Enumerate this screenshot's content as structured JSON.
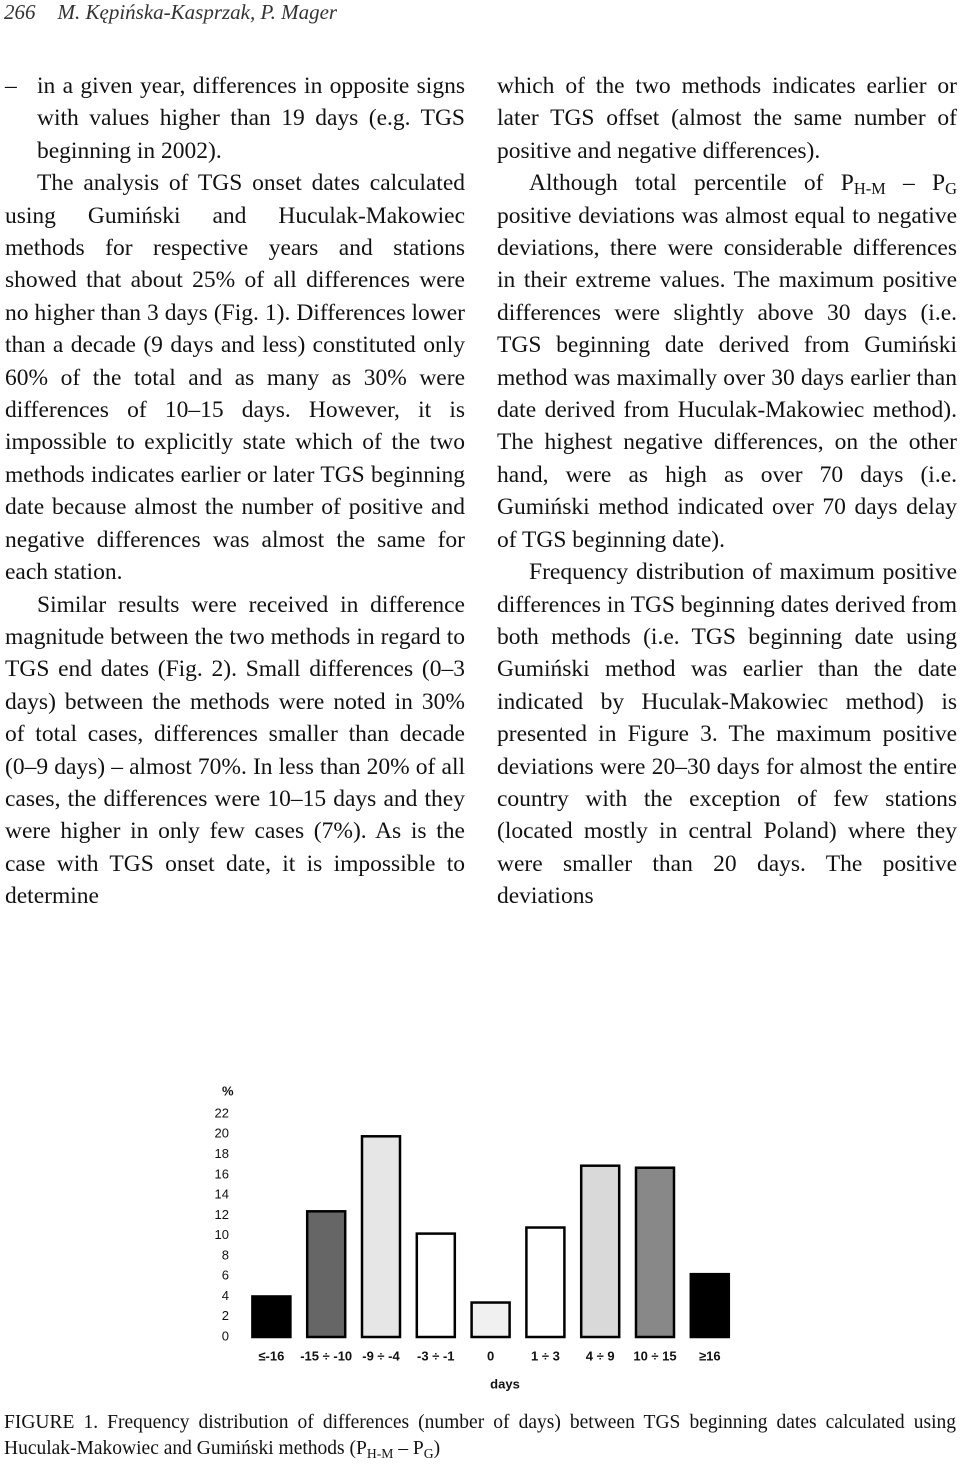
{
  "header": {
    "page": "266",
    "authors": "M. Kępińska-Kasprzak, P. Mager"
  },
  "left_column": {
    "item_marker": "–",
    "item": [
      [
        "in a given year, differences in opposite signs with values higher than 19 days (e.g. TGS beginning in 2002)."
      ]
    ],
    "paragraphs": [
      [
        "The analysis of TGS onset dates calculated using Gumiński and Huculak-Makowiec methods for respective years and stations showed that about 25% of all differences were no higher than 3 days (Fig. 1). Differences lower than a decade (9 days and less) constituted only 60% of the total and as many as 30% were differences of 10–15 days. However, it is impossible to explicitly state which of the two methods indicates earlier or later TGS beginning date because almost the number of positive and negative differences was almost the same for each station."
      ],
      [
        "Similar results were received in difference magnitude between the two methods in regard to TGS end dates (Fig. 2). Small differences (0–3 days) between the methods were noted in 30% of total cases, differences smaller than decade (0–9 days) – almost 70%. In less than 20% of all cases, the differences were 10–15 days and they were higher in only few cases (7%). As is the case with TGS onset date, it is impossible to determine"
      ]
    ]
  },
  "right_column": {
    "paragraphs": [
      [
        "which of the two methods indicates earlier or later TGS offset (almost the same number of positive and negative differences)."
      ],
      [
        "Although total percentile of P",
        "H-M",
        " – P",
        "G",
        " positive deviations was almost equal to negative deviations, there were considerable differences in their extreme values. The maximum positive differences were slightly above 30 days (i.e. TGS beginning date derived from Gumiński method was maximally over 30 days earlier than date derived from Huculak-Makowiec method). The highest negative differences, on the other hand, were as high as over 70 days (i.e. Gumiński method indicated over 70 days delay of TGS beginning date)."
      ],
      [
        "Frequency distribution of maximum positive differences in TGS beginning dates derived from both methods (i.e. TGS beginning date using Gumiński method was earlier than the date indicated by Huculak-Makowiec method) is presented in Figure 3. The maximum positive deviations were 20–30 days for almost the entire country with the exception of few stations (located mostly in central Poland) where they were smaller than 20 days. The positive deviations"
      ]
    ]
  },
  "chart_data": {
    "type": "bar",
    "y_label": "%",
    "x_label": "days",
    "categories": [
      "≤-16",
      "-15 ÷ -10",
      "-9 ÷ -4",
      "-3 ÷ -1",
      "0",
      "1 ÷ 3",
      "4 ÷ 9",
      "10 ÷ 15",
      "≥16"
    ],
    "values": [
      4.0,
      12.4,
      19.8,
      10.2,
      3.4,
      10.8,
      16.9,
      16.7,
      6.2
    ],
    "colors": [
      "#000000",
      "#666666",
      "#e6e6e6",
      "#ffffff",
      "#f0f0f0",
      "#ffffff",
      "#d9d9d9",
      "#888888",
      "#000000"
    ],
    "ylim": [
      0,
      22
    ],
    "yticks": [
      0,
      2,
      4,
      6,
      8,
      10,
      12,
      14,
      16,
      18,
      20,
      22
    ],
    "grid": false
  },
  "caption": [
    "FIGURE 1. Frequency distribution of differences (number of days) between TGS beginning dates calculated using Huculak-Makowiec and Gumiński methods (P",
    "H-M",
    " – P",
    "G",
    ")"
  ]
}
